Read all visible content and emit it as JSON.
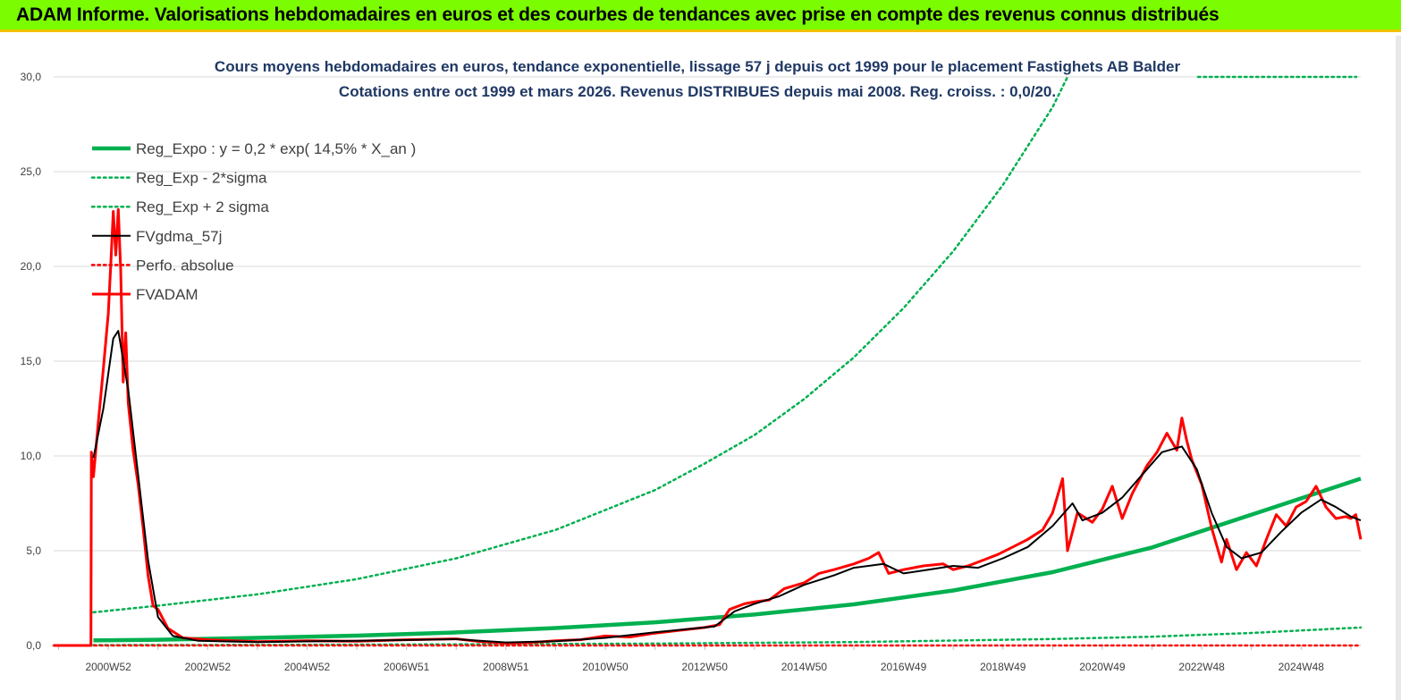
{
  "header": {
    "title": "ADAM Informe. Valorisations hebdomadaires en euros et des courbes de tendances avec prise en compte des revenus connus distribués"
  },
  "chart_data": {
    "type": "line",
    "title": "Cours moyens hebdomadaires en euros, tendance exponentielle, lissage 57 j depuis oct 1999 pour le placement Fastighets AB Balder",
    "subtitle": "Cotations entre oct 1999 et mars 2026. Revenus DISTRIBUES depuis mai 2008. Reg. croiss. : 0,0/20.",
    "xlabel": "",
    "ylabel": "",
    "ylim": [
      0,
      30
    ],
    "xlim": [
      1999.9,
      2026.2
    ],
    "y_ticks": [
      "0,0",
      "5,0",
      "10,0",
      "15,0",
      "20,0",
      "25,0",
      "30,0"
    ],
    "x_ticks": [
      {
        "x": 2001.0,
        "label": "2000W52"
      },
      {
        "x": 2003.0,
        "label": "2002W52"
      },
      {
        "x": 2005.0,
        "label": "2004W52"
      },
      {
        "x": 2007.0,
        "label": "2006W51"
      },
      {
        "x": 2009.0,
        "label": "2008W51"
      },
      {
        "x": 2011.0,
        "label": "2010W50"
      },
      {
        "x": 2013.0,
        "label": "2012W50"
      },
      {
        "x": 2015.0,
        "label": "2014W50"
      },
      {
        "x": 2017.0,
        "label": "2016W49"
      },
      {
        "x": 2019.0,
        "label": "2018W49"
      },
      {
        "x": 2021.0,
        "label": "2020W49"
      },
      {
        "x": 2023.0,
        "label": "2022W48"
      },
      {
        "x": 2025.0,
        "label": "2024W48"
      }
    ],
    "grid": true,
    "legend_position": "top-left",
    "series": [
      {
        "name": "Reg_Expo : y = 0,2 * exp( 14,5% *  X_an )",
        "color": "#00b050",
        "style": "solid-thick",
        "points": [
          [
            2000.7,
            0.27
          ],
          [
            2002,
            0.3
          ],
          [
            2004,
            0.4
          ],
          [
            2006,
            0.52
          ],
          [
            2008,
            0.69
          ],
          [
            2010,
            0.92
          ],
          [
            2012,
            1.22
          ],
          [
            2014,
            1.63
          ],
          [
            2016,
            2.17
          ],
          [
            2018,
            2.9
          ],
          [
            2020,
            3.87
          ],
          [
            2022,
            5.17
          ],
          [
            2024,
            6.9
          ],
          [
            2026.2,
            8.8
          ]
        ]
      },
      {
        "name": "Reg_Exp - 2*sigma",
        "color": "#00b050",
        "style": "dotted",
        "points": [
          [
            2000.7,
            0.02
          ],
          [
            2004,
            0.03
          ],
          [
            2008,
            0.06
          ],
          [
            2012,
            0.1
          ],
          [
            2016,
            0.18
          ],
          [
            2020,
            0.34
          ],
          [
            2022,
            0.46
          ],
          [
            2024,
            0.66
          ],
          [
            2026.2,
            0.95
          ]
        ]
      },
      {
        "name": "Reg_Exp + 2 sigma",
        "color": "#00b050",
        "style": "dotted",
        "points": [
          [
            2000.7,
            1.75
          ],
          [
            2002,
            2.1
          ],
          [
            2004,
            2.7
          ],
          [
            2006,
            3.5
          ],
          [
            2008,
            4.6
          ],
          [
            2010,
            6.1
          ],
          [
            2012,
            8.2
          ],
          [
            2013,
            9.6
          ],
          [
            2014,
            11.1
          ],
          [
            2015,
            13.0
          ],
          [
            2016,
            15.2
          ],
          [
            2017,
            17.8
          ],
          [
            2018,
            20.8
          ],
          [
            2019,
            24.3
          ],
          [
            2020,
            28.4
          ],
          [
            2020.3,
            30.0
          ]
        ]
      },
      {
        "name": "FVgdma_57j",
        "color": "#000000",
        "style": "solid",
        "points": [
          [
            2000.7,
            9.9
          ],
          [
            2000.9,
            12.5
          ],
          [
            2001.1,
            16.2
          ],
          [
            2001.2,
            16.6
          ],
          [
            2001.4,
            13.5
          ],
          [
            2001.6,
            9.0
          ],
          [
            2001.8,
            4.5
          ],
          [
            2002.0,
            1.5
          ],
          [
            2002.3,
            0.5
          ],
          [
            2002.8,
            0.25
          ],
          [
            2004,
            0.18
          ],
          [
            2006,
            0.25
          ],
          [
            2008,
            0.33
          ],
          [
            2009,
            0.16
          ],
          [
            2010,
            0.22
          ],
          [
            2011,
            0.4
          ],
          [
            2012,
            0.7
          ],
          [
            2013.2,
            1.0
          ],
          [
            2013.6,
            1.8
          ],
          [
            2014,
            2.2
          ],
          [
            2014.5,
            2.6
          ],
          [
            2015,
            3.2
          ],
          [
            2015.6,
            3.7
          ],
          [
            2016,
            4.1
          ],
          [
            2016.6,
            4.3
          ],
          [
            2017,
            3.8
          ],
          [
            2017.5,
            4.0
          ],
          [
            2018,
            4.2
          ],
          [
            2018.5,
            4.1
          ],
          [
            2019,
            4.6
          ],
          [
            2019.5,
            5.2
          ],
          [
            2020,
            6.3
          ],
          [
            2020.4,
            7.5
          ],
          [
            2020.6,
            6.6
          ],
          [
            2021,
            7.0
          ],
          [
            2021.4,
            7.8
          ],
          [
            2021.8,
            9.0
          ],
          [
            2022.2,
            10.2
          ],
          [
            2022.6,
            10.5
          ],
          [
            2022.9,
            9.3
          ],
          [
            2023.2,
            7.0
          ],
          [
            2023.5,
            5.2
          ],
          [
            2023.8,
            4.6
          ],
          [
            2024.2,
            4.9
          ],
          [
            2024.6,
            6.0
          ],
          [
            2025,
            7.0
          ],
          [
            2025.4,
            7.7
          ],
          [
            2025.7,
            7.3
          ],
          [
            2026.0,
            6.8
          ],
          [
            2026.2,
            6.6
          ]
        ]
      },
      {
        "name": "Perfo. absolue",
        "color": "#ff0000",
        "style": "dotted",
        "points": [
          [
            1999.9,
            0.0
          ],
          [
            2026.2,
            0.0
          ]
        ]
      },
      {
        "name": "FVADAM",
        "color": "#ff0000",
        "style": "solid-thick",
        "points": [
          [
            1999.9,
            0.0
          ],
          [
            2000.65,
            0.0
          ],
          [
            2000.66,
            10.2
          ],
          [
            2000.7,
            8.9
          ],
          [
            2000.8,
            11.8
          ],
          [
            2000.9,
            14.6
          ],
          [
            2001.0,
            17.5
          ],
          [
            2001.05,
            20.1
          ],
          [
            2001.1,
            22.9
          ],
          [
            2001.15,
            20.6
          ],
          [
            2001.2,
            23.0
          ],
          [
            2001.25,
            19.8
          ],
          [
            2001.3,
            13.9
          ],
          [
            2001.35,
            16.5
          ],
          [
            2001.4,
            12.8
          ],
          [
            2001.5,
            10.3
          ],
          [
            2001.6,
            8.5
          ],
          [
            2001.7,
            6.2
          ],
          [
            2001.8,
            3.7
          ],
          [
            2001.9,
            2.1
          ],
          [
            2002.0,
            1.9
          ],
          [
            2002.2,
            0.9
          ],
          [
            2002.5,
            0.4
          ],
          [
            2003,
            0.3
          ],
          [
            2004,
            0.2
          ],
          [
            2005,
            0.25
          ],
          [
            2006,
            0.22
          ],
          [
            2007,
            0.3
          ],
          [
            2008,
            0.35
          ],
          [
            2008.5,
            0.2
          ],
          [
            2009,
            0.12
          ],
          [
            2009.5,
            0.15
          ],
          [
            2010,
            0.25
          ],
          [
            2010.5,
            0.3
          ],
          [
            2011,
            0.5
          ],
          [
            2011.5,
            0.45
          ],
          [
            2012,
            0.65
          ],
          [
            2012.5,
            0.8
          ],
          [
            2013,
            0.95
          ],
          [
            2013.3,
            1.1
          ],
          [
            2013.5,
            1.9
          ],
          [
            2013.8,
            2.2
          ],
          [
            2014,
            2.3
          ],
          [
            2014.3,
            2.4
          ],
          [
            2014.6,
            3.0
          ],
          [
            2015,
            3.3
          ],
          [
            2015.3,
            3.8
          ],
          [
            2015.6,
            4.0
          ],
          [
            2016,
            4.3
          ],
          [
            2016.3,
            4.6
          ],
          [
            2016.5,
            4.9
          ],
          [
            2016.7,
            3.8
          ],
          [
            2017,
            4.0
          ],
          [
            2017.4,
            4.2
          ],
          [
            2017.8,
            4.3
          ],
          [
            2018,
            4.0
          ],
          [
            2018.3,
            4.2
          ],
          [
            2018.6,
            4.5
          ],
          [
            2018.9,
            4.8
          ],
          [
            2019.2,
            5.2
          ],
          [
            2019.5,
            5.6
          ],
          [
            2019.8,
            6.1
          ],
          [
            2020.0,
            7.0
          ],
          [
            2020.2,
            8.8
          ],
          [
            2020.3,
            5.0
          ],
          [
            2020.5,
            7.0
          ],
          [
            2020.8,
            6.5
          ],
          [
            2021.0,
            7.2
          ],
          [
            2021.2,
            8.4
          ],
          [
            2021.4,
            6.7
          ],
          [
            2021.6,
            8.0
          ],
          [
            2021.9,
            9.5
          ],
          [
            2022.1,
            10.2
          ],
          [
            2022.3,
            11.2
          ],
          [
            2022.5,
            10.3
          ],
          [
            2022.6,
            12.0
          ],
          [
            2022.7,
            10.8
          ],
          [
            2022.8,
            9.8
          ],
          [
            2023.0,
            8.5
          ],
          [
            2023.2,
            6.2
          ],
          [
            2023.4,
            4.4
          ],
          [
            2023.5,
            5.6
          ],
          [
            2023.7,
            4.0
          ],
          [
            2023.9,
            4.9
          ],
          [
            2024.1,
            4.2
          ],
          [
            2024.3,
            5.6
          ],
          [
            2024.5,
            6.9
          ],
          [
            2024.7,
            6.3
          ],
          [
            2024.9,
            7.3
          ],
          [
            2025.1,
            7.6
          ],
          [
            2025.3,
            8.4
          ],
          [
            2025.5,
            7.3
          ],
          [
            2025.7,
            6.7
          ],
          [
            2025.9,
            6.8
          ],
          [
            2026.0,
            6.7
          ],
          [
            2026.1,
            6.9
          ],
          [
            2026.2,
            5.6
          ]
        ]
      }
    ]
  }
}
